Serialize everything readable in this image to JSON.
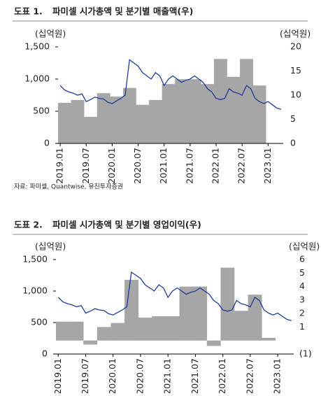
{
  "chart_data": [
    {
      "type": "bar-line",
      "number": "도표 1.",
      "title": "파미셀 시가총액 및 분기별 매출액(우)",
      "ylabel": "(십억원)",
      "y2label": "(십억원)",
      "source": "자료: 파미셀, Quantwise, 유진투자증권",
      "x": [
        "2019.01",
        "2019.02",
        "2019.03",
        "2019.04",
        "2019.05",
        "2019.06",
        "2019.07",
        "2019.08",
        "2019.09",
        "2019.10",
        "2019.11",
        "2019.12",
        "2020.01",
        "2020.02",
        "2020.03",
        "2020.04",
        "2020.05",
        "2020.06",
        "2020.07",
        "2020.08",
        "2020.09",
        "2020.10",
        "2020.11",
        "2020.12",
        "2021.01",
        "2021.02",
        "2021.03",
        "2021.04",
        "2021.05",
        "2021.06",
        "2021.07",
        "2021.08",
        "2021.09",
        "2021.10",
        "2021.11",
        "2021.12",
        "2022.01",
        "2022.02",
        "2022.03",
        "2022.04",
        "2022.05",
        "2022.06",
        "2022.07",
        "2022.08",
        "2022.09",
        "2022.10",
        "2022.11",
        "2022.12",
        "2023.01",
        "2023.02",
        "2023.03",
        "2023.04"
      ],
      "xticks": [
        "2019.01",
        "2019.07",
        "2020.01",
        "2020.07",
        "2021.01",
        "2021.07",
        "2022.01",
        "2022.07",
        "2023.01"
      ],
      "ylim": [
        0,
        1500
      ],
      "yticks": [
        0,
        500,
        {
          "value": 1000,
          "label": "1,000"
        },
        {
          "value": 1500,
          "label": "1,500"
        }
      ],
      "y2lim": [
        0,
        20
      ],
      "y2ticks": [
        0,
        5,
        10,
        15,
        20
      ],
      "series": [
        {
          "name": "분기별 매출액",
          "axis": "y2",
          "color": "#a6a6a6",
          "values": [
            8.4,
            8.4,
            8.4,
            9,
            9,
            9,
            5.5,
            5.5,
            5.5,
            10.4,
            10.4,
            10.4,
            9.7,
            9.7,
            9.7,
            11.5,
            11.5,
            11.5,
            8,
            8,
            8,
            9,
            9,
            9,
            12.3,
            12.3,
            12.3,
            13.3,
            13.3,
            13.3,
            13.3,
            13.3,
            13.3,
            12.3,
            12.3,
            12.3,
            17.5,
            17.5,
            17.5,
            13.8,
            13.8,
            13.8,
            17.5,
            17.5,
            17.5,
            12,
            12,
            12,
            null,
            null,
            null,
            null
          ]
        },
        {
          "name": "시가총액",
          "color": "#1f3c9c",
          "values": [
            900,
            830,
            800,
            780,
            750,
            770,
            650,
            680,
            720,
            700,
            690,
            640,
            620,
            660,
            700,
            750,
            1300,
            1250,
            1200,
            1100,
            1050,
            1000,
            1100,
            1050,
            900,
            1000,
            1050,
            1000,
            950,
            980,
            1000,
            1050,
            1000,
            950,
            850,
            800,
            700,
            680,
            700,
            850,
            800,
            780,
            750,
            900,
            850,
            700,
            650,
            620,
            650,
            600,
            550,
            530
          ]
        }
      ]
    },
    {
      "type": "bar-line",
      "number": "도표 2.",
      "title": "파미셀 시가총액 및 분기별 영업이익(우)",
      "ylabel": "(십억원)",
      "y2label": "(십억원)",
      "x": [
        "2019.01",
        "2019.02",
        "2019.03",
        "2019.04",
        "2019.05",
        "2019.06",
        "2019.07",
        "2019.08",
        "2019.09",
        "2019.10",
        "2019.11",
        "2019.12",
        "2020.01",
        "2020.02",
        "2020.03",
        "2020.04",
        "2020.05",
        "2020.06",
        "2020.07",
        "2020.08",
        "2020.09",
        "2020.10",
        "2020.11",
        "2020.12",
        "2021.01",
        "2021.02",
        "2021.03",
        "2021.04",
        "2021.05",
        "2021.06",
        "2021.07",
        "2021.08",
        "2021.09",
        "2021.10",
        "2021.11",
        "2021.12",
        "2022.01",
        "2022.02",
        "2022.03",
        "2022.04",
        "2022.05",
        "2022.06",
        "2022.07",
        "2022.08",
        "2022.09",
        "2022.10",
        "2022.11",
        "2022.12",
        "2023.01",
        "2023.02",
        "2023.03",
        "2023.04"
      ],
      "xticks": [
        "2019.01",
        "2019.07",
        "2020.01",
        "2020.07",
        "2021.01",
        "2021.07",
        "2022.01",
        "2022.07",
        "2023.01"
      ],
      "ylim": [
        0,
        1500
      ],
      "yticks": [
        0,
        500,
        {
          "value": 1000,
          "label": "1,000"
        },
        {
          "value": 1500,
          "label": "1,500"
        }
      ],
      "y2lim": [
        -1,
        6
      ],
      "y2ticks": [
        {
          "value": -1,
          "label": "(1)"
        },
        1,
        2,
        3,
        4,
        5,
        6
      ],
      "series": [
        {
          "name": "분기별 영업이익",
          "axis": "y2",
          "color": "#a6a6a6",
          "values": [
            1.4,
            1.4,
            1.4,
            1.4,
            1.4,
            1.4,
            -0.3,
            -0.3,
            -0.3,
            1.0,
            1.0,
            1.0,
            1.3,
            1.3,
            1.3,
            4.5,
            4.5,
            4.5,
            1.7,
            1.7,
            1.7,
            1.8,
            1.8,
            1.8,
            1.8,
            1.8,
            1.8,
            4.0,
            4.0,
            4.0,
            4.0,
            4.0,
            4.0,
            -0.4,
            -0.4,
            -0.4,
            5.4,
            5.4,
            5.4,
            2.2,
            2.2,
            2.2,
            3.4,
            3.4,
            3.4,
            0.2,
            0.2,
            0.2,
            null,
            null,
            null,
            null
          ]
        },
        {
          "name": "시가총액",
          "color": "#1f3c9c",
          "values": [
            900,
            830,
            800,
            780,
            750,
            770,
            650,
            680,
            720,
            700,
            690,
            640,
            620,
            660,
            700,
            750,
            1300,
            1250,
            1200,
            1100,
            1050,
            1000,
            1100,
            1050,
            900,
            1000,
            1050,
            1000,
            950,
            980,
            1000,
            1050,
            1000,
            950,
            850,
            800,
            700,
            680,
            700,
            850,
            800,
            780,
            750,
            900,
            850,
            700,
            650,
            620,
            650,
            600,
            550,
            530
          ]
        }
      ]
    }
  ]
}
